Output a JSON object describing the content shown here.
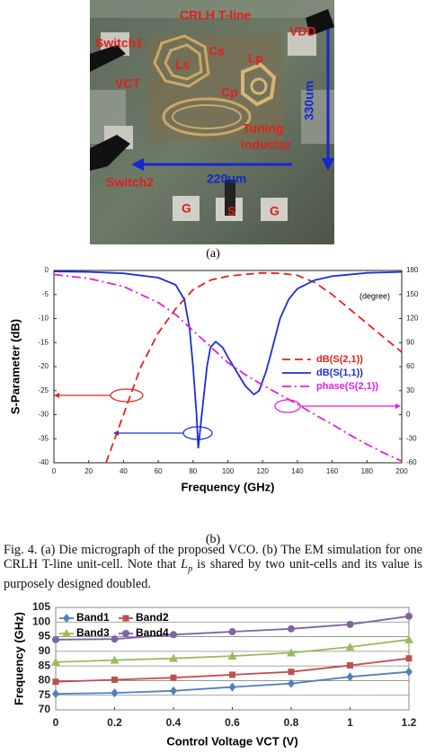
{
  "figure_a": {
    "labels": [
      "CRLH T-line",
      "Switch1",
      "VDD",
      "Ls",
      "Cs",
      "Lp",
      "VCT",
      "Cp",
      "330um",
      "Tuning",
      "inductor",
      "220um",
      "Switch2",
      "G",
      "S",
      "G"
    ],
    "subcaption": "(a)"
  },
  "chart_data": [
    {
      "type": "line",
      "subcaption": "(b)",
      "xlabel": "Frequency (GHz)",
      "ylabel": "S-Parameter (dB)",
      "annotation": "(degree)",
      "xlim": [
        0,
        200
      ],
      "xticks": [
        0,
        20,
        40,
        60,
        80,
        100,
        120,
        140,
        160,
        180,
        200
      ],
      "ylim": [
        -40,
        0
      ],
      "yticks": [
        0,
        -5,
        -10,
        -15,
        -20,
        -25,
        -30,
        -35,
        -40
      ],
      "y2lim": [
        -60,
        180
      ],
      "y2ticks": [
        180,
        150,
        120,
        90,
        60,
        30,
        0,
        -30,
        -60
      ],
      "grid": false,
      "legend": "right",
      "series": [
        {
          "name": "dB(S(2,1))",
          "color": "#e8201c",
          "style": "dashed",
          "x": [
            30,
            40,
            50,
            60,
            70,
            80,
            90,
            100,
            110,
            120,
            130,
            140,
            150,
            160,
            170,
            180,
            190,
            200
          ],
          "values": [
            -40,
            -30,
            -20,
            -13,
            -8,
            -4,
            -2,
            -1.2,
            -0.8,
            -0.5,
            -0.6,
            -1,
            -2.5,
            -5,
            -8,
            -11,
            -14,
            -17
          ]
        },
        {
          "name": "dB(S(1,1))",
          "color": "#1c2ed8",
          "style": "solid",
          "x": [
            0,
            20,
            40,
            60,
            70,
            75,
            78,
            80,
            82,
            83,
            85,
            88,
            90,
            93,
            97,
            100,
            105,
            110,
            115,
            118,
            122,
            125,
            130,
            135,
            140,
            150,
            160,
            180,
            200
          ],
          "values": [
            -0.2,
            -0.3,
            -0.6,
            -1.5,
            -3,
            -6,
            -12,
            -20,
            -30,
            -37,
            -30,
            -20,
            -16,
            -14.8,
            -16,
            -18,
            -21,
            -24,
            -25.8,
            -25,
            -21,
            -17,
            -10,
            -6,
            -3.8,
            -2,
            -1.2,
            -0.5,
            -0.3
          ]
        },
        {
          "name": "phase(S(2,1))",
          "color": "#e020e0",
          "style": "dashdot",
          "axis": "y2",
          "x": [
            0,
            20,
            40,
            60,
            70,
            80,
            90,
            100,
            110,
            120,
            130,
            140,
            150,
            160,
            170,
            180,
            190,
            200
          ],
          "values": [
            175,
            170,
            160,
            140,
            125,
            105,
            85,
            65,
            50,
            37,
            25,
            13,
            0,
            -12,
            -25,
            -37,
            -48,
            -58
          ]
        }
      ]
    },
    {
      "type": "line",
      "xlabel": "Control Voltage VCT (V)",
      "ylabel": "Frequency (GHz)",
      "xlim": [
        0,
        1.2
      ],
      "xticks": [
        0,
        0.2,
        0.4,
        0.6,
        0.8,
        1,
        1.2
      ],
      "ylim": [
        70,
        105
      ],
      "yticks": [
        70,
        75,
        80,
        85,
        90,
        95,
        100,
        105
      ],
      "grid": true,
      "legend": "upper left",
      "series": [
        {
          "name": "Band1",
          "color": "#4f81bd",
          "marker": "diamond",
          "x": [
            0,
            0.2,
            0.4,
            0.6,
            0.8,
            1,
            1.2
          ],
          "values": [
            75.5,
            75.8,
            76.5,
            77.8,
            79,
            81.3,
            83
          ]
        },
        {
          "name": "Band2",
          "color": "#c0504d",
          "marker": "square",
          "x": [
            0,
            0.2,
            0.4,
            0.6,
            0.8,
            1,
            1.2
          ],
          "values": [
            79.6,
            80.3,
            81,
            82,
            83,
            85.2,
            87.6
          ]
        },
        {
          "name": "Band3",
          "color": "#9bbb59",
          "marker": "triangle",
          "x": [
            0,
            0.2,
            0.4,
            0.6,
            0.8,
            1,
            1.2
          ],
          "values": [
            86.3,
            87,
            87.6,
            88.4,
            89.5,
            91.5,
            94
          ]
        },
        {
          "name": "Band4",
          "color": "#8064a2",
          "marker": "circle",
          "x": [
            0,
            0.2,
            0.4,
            0.6,
            0.8,
            1,
            1.2
          ],
          "values": [
            94,
            94.2,
            95.7,
            96.7,
            97.7,
            99.2,
            102
          ]
        }
      ]
    }
  ],
  "caption": {
    "before": "Fig. 4. (a) Die micrograph of the proposed VCO. (b) The EM simulation for one CRLH T-line unit-cell. Note that ",
    "symbol": "L",
    "subscript": "p",
    "after": " is shared by two unit-cells and its value is purposely designed doubled."
  }
}
